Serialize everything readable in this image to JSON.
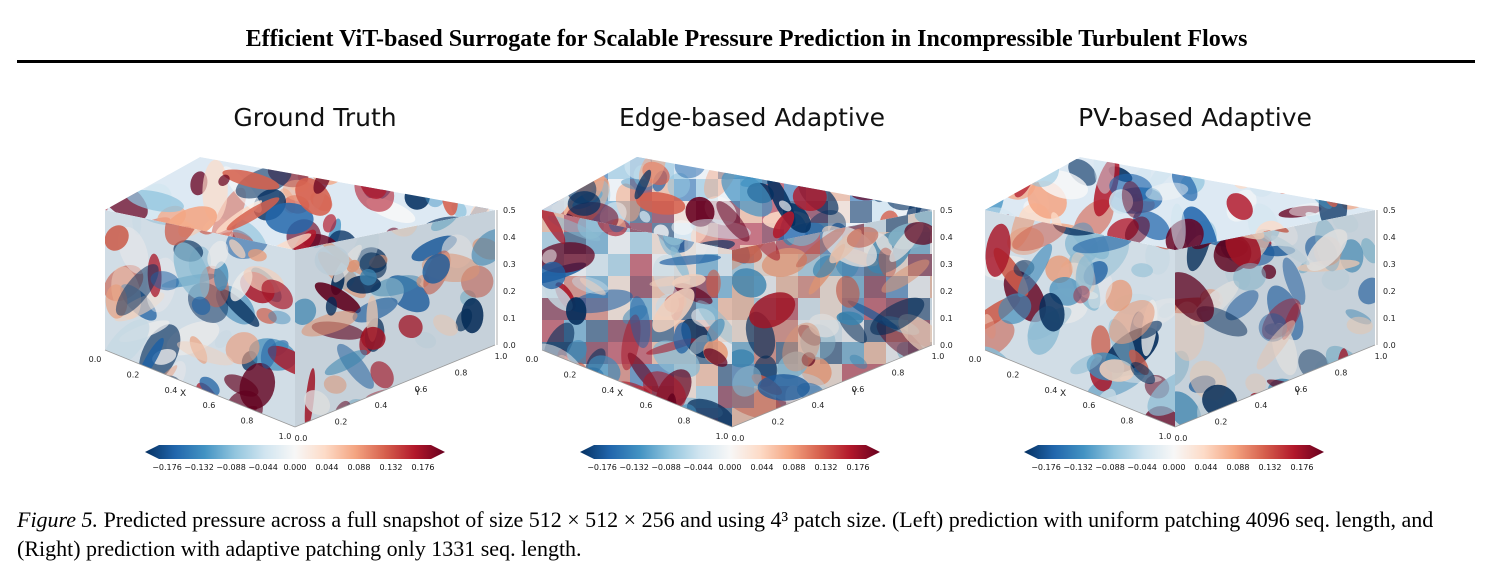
{
  "header": {
    "title": "Efficient ViT-based Surrogate for Scalable Pressure Prediction in Incompressible Turbulent Flows"
  },
  "panels": [
    {
      "title": "Ground Truth"
    },
    {
      "title": "Edge-based Adaptive"
    },
    {
      "title": "PV-based Adaptive"
    }
  ],
  "axes": {
    "x_label": "X",
    "y_label": "Y",
    "x_ticks": [
      "0.0",
      "0.2",
      "0.4",
      "0.6",
      "0.8",
      "1.0"
    ],
    "y_ticks": [
      "0.0",
      "0.2",
      "0.4",
      "0.6",
      "0.8",
      "1.0"
    ],
    "z_ticks": [
      "0.0",
      "0.1",
      "0.2",
      "0.3",
      "0.4",
      "0.5"
    ]
  },
  "colorbar": {
    "ticks": [
      "−0.176",
      "−0.132",
      "−0.088",
      "−0.044",
      "0.000",
      "0.044",
      "0.088",
      "0.132",
      "0.176"
    ],
    "colors": [
      "#053061",
      "#2166ac",
      "#4393c3",
      "#92c5de",
      "#d1e5f0",
      "#f7f7f7",
      "#fddbc7",
      "#f4a582",
      "#d6604d",
      "#b2182b",
      "#67001f"
    ]
  },
  "caption": {
    "label": "Figure 5.",
    "text": "Predicted pressure across a full snapshot of size 512 × 512 × 256 and using 4³ patch size. (Left) prediction with uniform patching 4096 seq. length, and (Right) prediction with adaptive patching only 1331 seq. length."
  }
}
